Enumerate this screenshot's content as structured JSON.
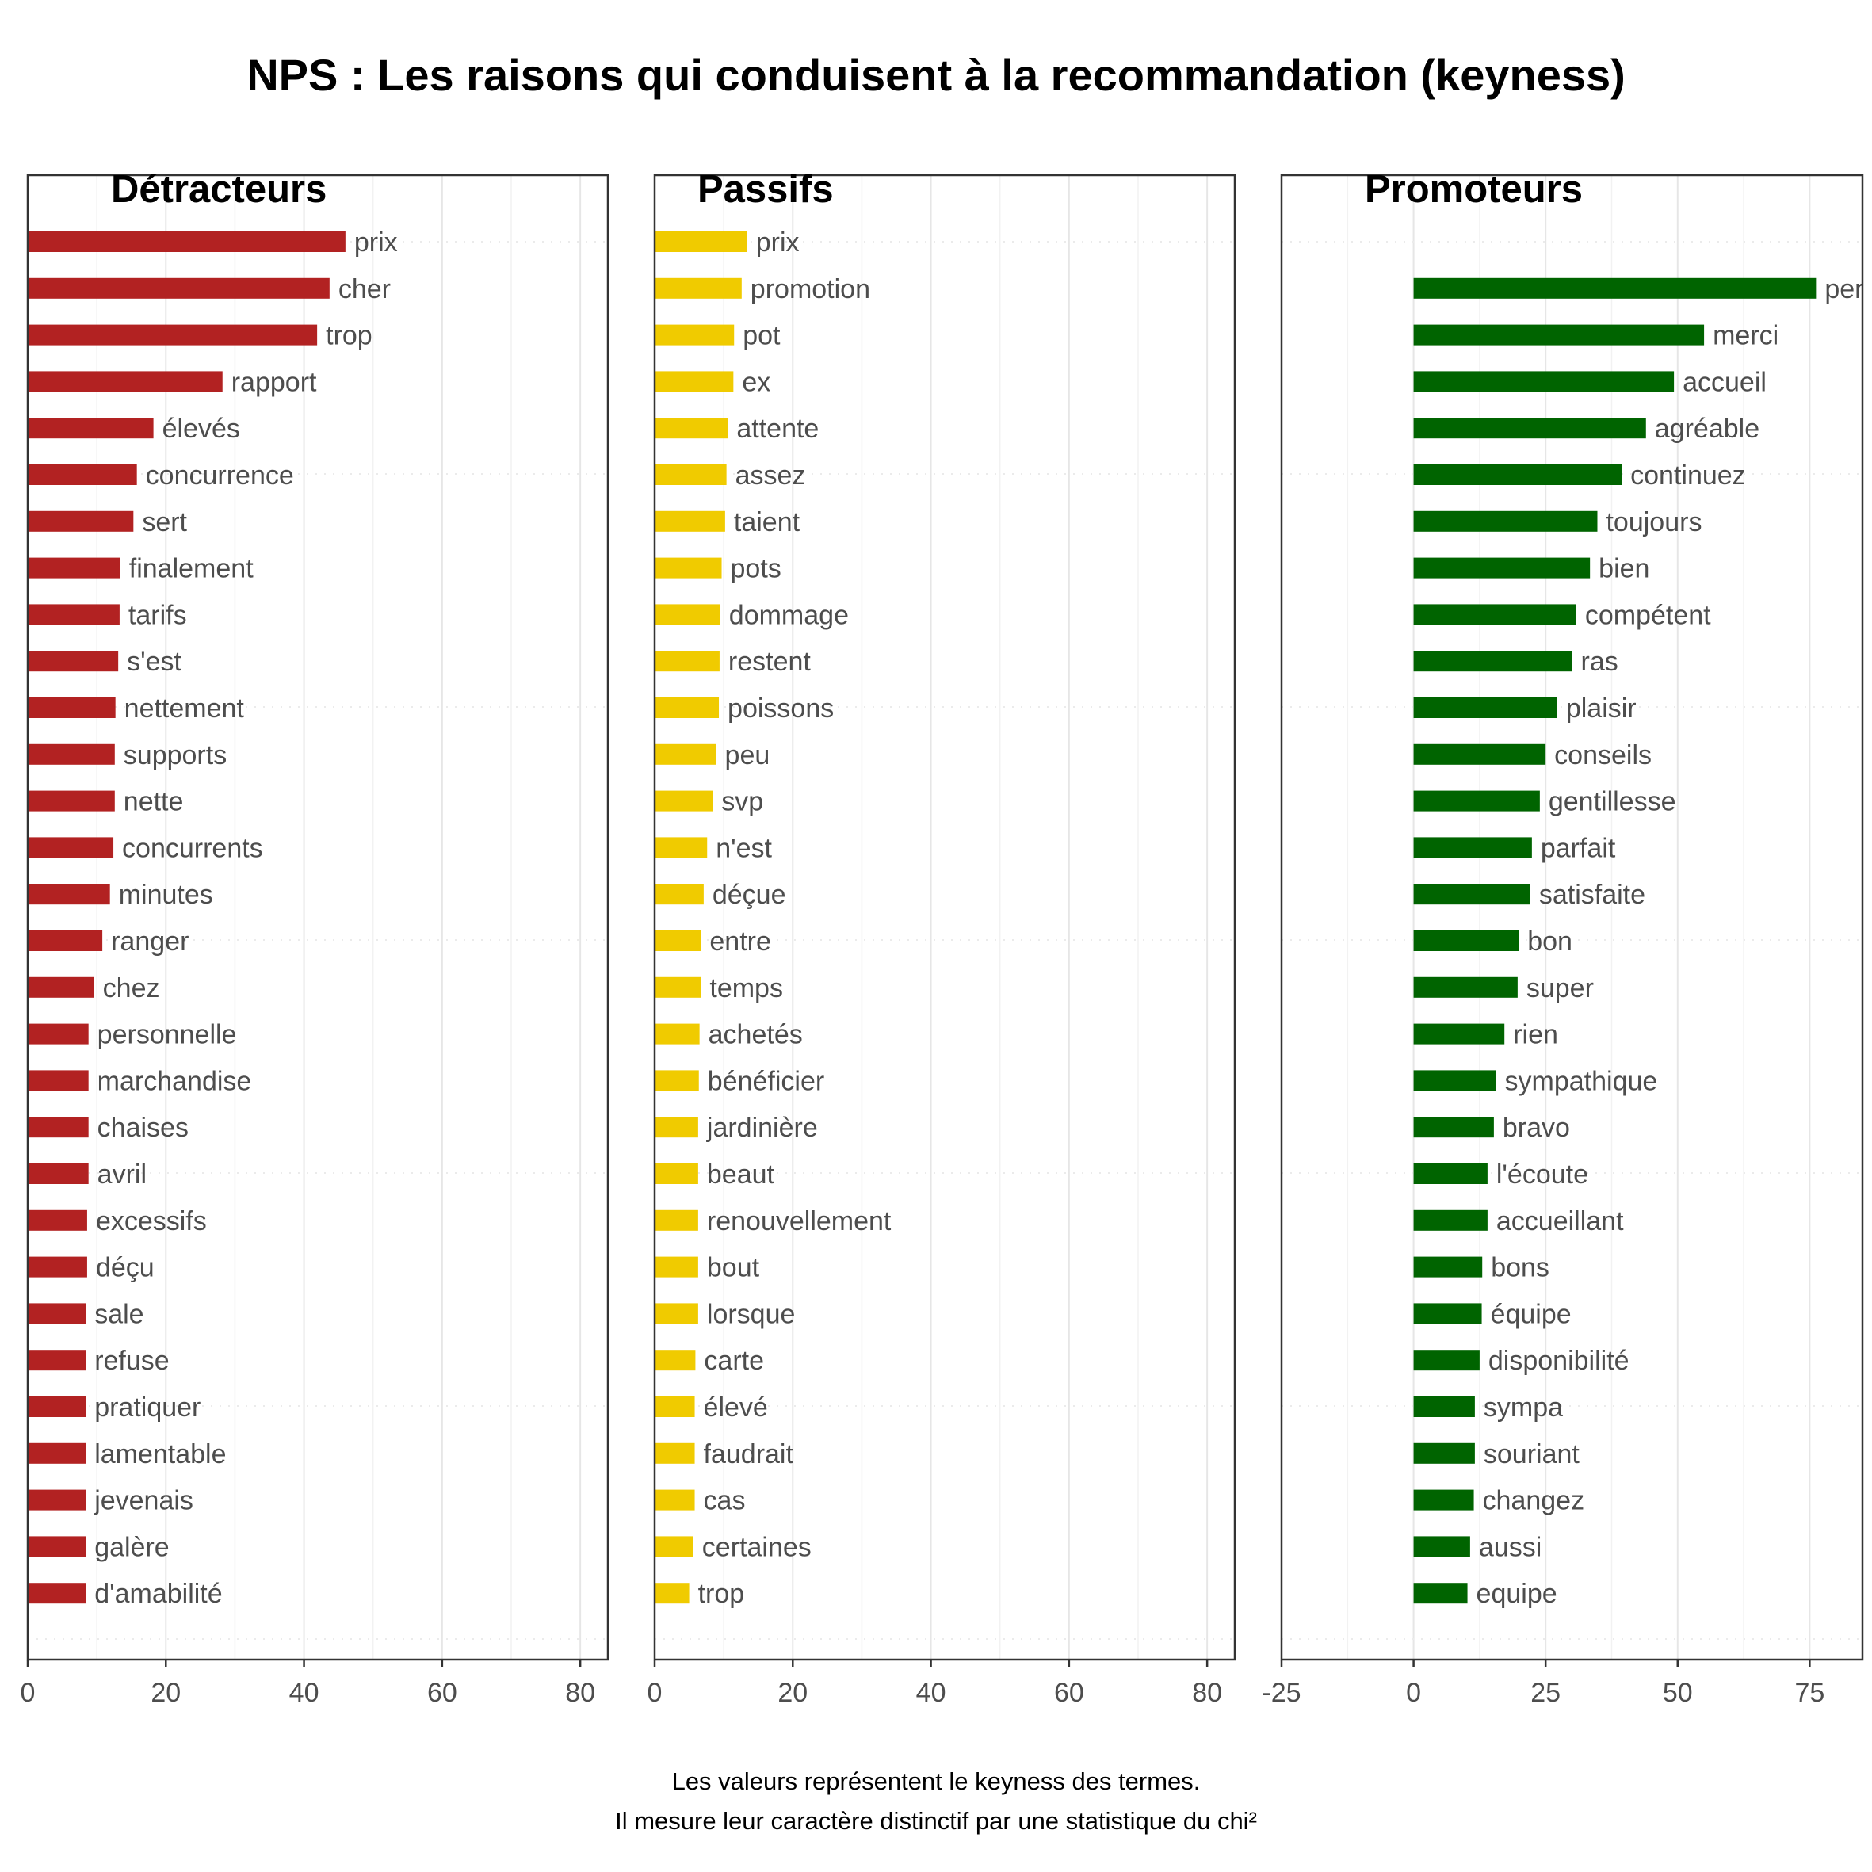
{
  "title": "NPS : Les raisons qui conduisent à la recommandation (keyness)",
  "caption": {
    "line1": "Les valeurs représentent le keyness des termes.",
    "line2": "Il mesure leur caractère distinctif par une statistique du chi²"
  },
  "chart_data": [
    {
      "type": "bar",
      "orientation": "horizontal",
      "title": "Détracteurs",
      "color": "#b22222",
      "xlim": [
        0,
        84
      ],
      "xticks": [
        0,
        20,
        40,
        60,
        80
      ],
      "categories": [
        "prix",
        "cher",
        "trop",
        "rapport",
        "élevés",
        "concurrence",
        "sert",
        "finalement",
        "tarifs",
        "s'est",
        "nettement",
        "supports",
        "nette",
        "concurrents",
        "minutes",
        "ranger",
        "chez",
        "personnelle",
        "marchandise",
        "chaises",
        "avril",
        "excessifs",
        "déçu",
        "sale",
        "refuse",
        "pratiquer",
        "lamentable",
        "jevenais",
        "galère",
        "d'amabilité"
      ],
      "values": [
        46,
        43.7,
        41.9,
        28.2,
        18.2,
        15.8,
        15.3,
        13.4,
        13.3,
        13.1,
        12.7,
        12.6,
        12.6,
        12.4,
        11.9,
        10.8,
        9.6,
        8.8,
        8.8,
        8.8,
        8.8,
        8.6,
        8.6,
        8.4,
        8.4,
        8.4,
        8.4,
        8.4,
        8.4,
        8.4
      ]
    },
    {
      "type": "bar",
      "orientation": "horizontal",
      "title": "Passifs",
      "color": "#f0cb00",
      "xlim": [
        0,
        84
      ],
      "xticks": [
        0,
        20,
        40,
        60,
        80
      ],
      "categories": [
        "prix",
        "promotion",
        "pot",
        "ex",
        "attente",
        "assez",
        "taient",
        "pots",
        "dommage",
        "restent",
        "poissons",
        "peu",
        "svp",
        "n'est",
        "déçue",
        "entre",
        "temps",
        "achetés",
        "bénéficier",
        "jardinière",
        "beaut",
        "renouvellement",
        "bout",
        "lorsque",
        "carte",
        "élevé",
        "faudrait",
        "cas",
        "certaines",
        "trop"
      ],
      "values": [
        13.4,
        12.6,
        11.5,
        11.4,
        10.6,
        10.4,
        10.2,
        9.7,
        9.5,
        9.4,
        9.3,
        8.9,
        8.4,
        7.6,
        7.1,
        6.7,
        6.7,
        6.5,
        6.4,
        6.3,
        6.3,
        6.3,
        6.3,
        6.3,
        5.9,
        5.8,
        5.8,
        5.8,
        5.6,
        5
      ]
    },
    {
      "type": "bar",
      "orientation": "horizontal",
      "title": "Promoteurs",
      "color": "#006400",
      "xlim": [
        -25,
        85
      ],
      "xticks": [
        -25,
        0,
        25,
        50,
        75
      ],
      "categories": [
        "per",
        "merci",
        "accueil",
        "agréable",
        "continuez",
        "toujours",
        "bien",
        "compétent",
        "ras",
        "plaisir",
        "conseils",
        "gentillesse",
        "parfait",
        "satisfaite",
        "bon",
        "super",
        "rien",
        "sympathique",
        "bravo",
        "l'écoute",
        "accueillant",
        "bons",
        "équipe",
        "disponibilité",
        "sympa",
        "souriant",
        "changez",
        "aussi",
        "equipe"
      ],
      "values": [
        76.2,
        55,
        49.3,
        44,
        39.4,
        34.8,
        33.4,
        30.8,
        30,
        27.2,
        25,
        23.9,
        22.4,
        22.1,
        19.9,
        19.7,
        17.2,
        15.6,
        15.2,
        14,
        14,
        13,
        12.9,
        12.5,
        11.6,
        11.6,
        11.4,
        10.7,
        10.2
      ]
    }
  ]
}
